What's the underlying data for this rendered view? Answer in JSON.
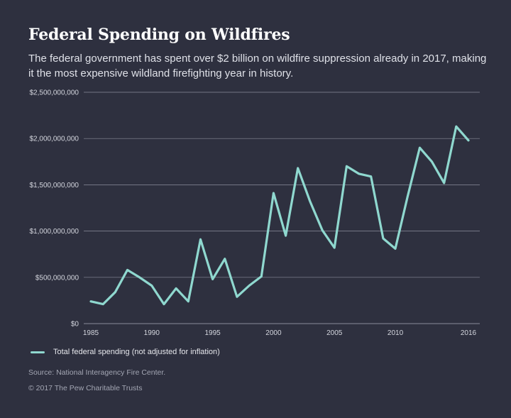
{
  "header": {
    "title": "Federal Spending on Wildfires",
    "subtitle": "The federal government has spent over $2 billion on wildfire suppression already in 2017, making it the most expensive wildland firefighting year in history."
  },
  "footer": {
    "source": "Source: National Interagency Fire Center.",
    "copyright": "© 2017 The Pew Charitable Trusts"
  },
  "colors": {
    "background": "#2e303f",
    "line": "#8fd8cf",
    "grid": "#8a8d9b"
  },
  "chart_data": {
    "type": "line",
    "title": "Federal Spending on Wildfires",
    "xlabel": "",
    "ylabel": "",
    "xlim": [
      1985,
      2016
    ],
    "ylim": [
      0,
      2500000000
    ],
    "grid": true,
    "legend_position": "bottom-left",
    "y_ticks": [
      {
        "value": 0,
        "label": "$0"
      },
      {
        "value": 500000000,
        "label": "$500,000,000"
      },
      {
        "value": 1000000000,
        "label": "$1,000,000,000"
      },
      {
        "value": 1500000000,
        "label": "$1,500,000,000"
      },
      {
        "value": 2000000000,
        "label": "$2,000,000,000"
      },
      {
        "value": 2500000000,
        "label": "$2,500,000,000"
      }
    ],
    "x_ticks": [
      {
        "value": 1985,
        "label": "1985"
      },
      {
        "value": 1990,
        "label": "1990"
      },
      {
        "value": 1995,
        "label": "1995"
      },
      {
        "value": 2000,
        "label": "2000"
      },
      {
        "value": 2005,
        "label": "2005"
      },
      {
        "value": 2010,
        "label": "2010"
      },
      {
        "value": 2016,
        "label": "2016"
      }
    ],
    "x": [
      1985,
      1986,
      1987,
      1988,
      1989,
      1990,
      1991,
      1992,
      1993,
      1994,
      1995,
      1996,
      1997,
      1998,
      1999,
      2000,
      2001,
      2002,
      2003,
      2004,
      2005,
      2006,
      2007,
      2008,
      2009,
      2010,
      2011,
      2012,
      2013,
      2014,
      2015,
      2016
    ],
    "series": [
      {
        "name": "Total federal spending (not adjusted for inflation)",
        "values": [
          240000000,
          210000000,
          340000000,
          580000000,
          500000000,
          410000000,
          210000000,
          380000000,
          240000000,
          910000000,
          480000000,
          700000000,
          290000000,
          410000000,
          510000000,
          1410000000,
          950000000,
          1680000000,
          1320000000,
          1010000000,
          820000000,
          1700000000,
          1620000000,
          1590000000,
          920000000,
          810000000,
          1370000000,
          1900000000,
          1750000000,
          1520000000,
          2130000000,
          1980000000
        ]
      }
    ]
  }
}
